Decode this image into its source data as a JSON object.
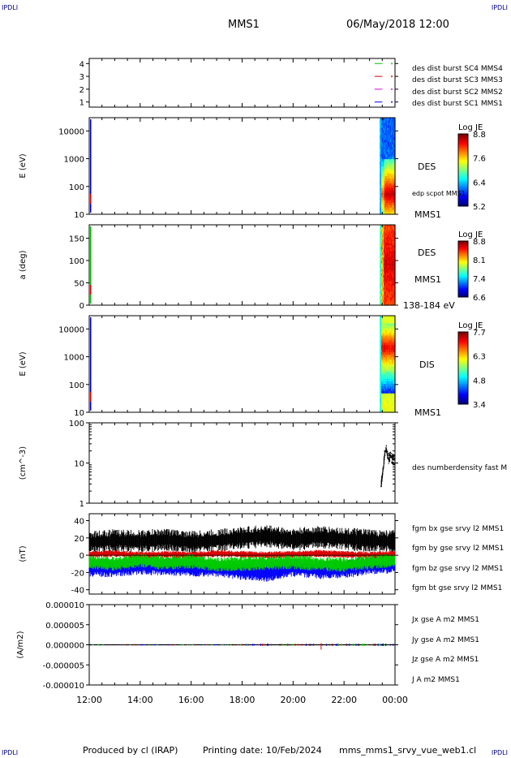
{
  "header": {
    "corner_label": "IPDLI",
    "spacecraft": "MMS1",
    "datetime": "06/May/2018 12:00"
  },
  "footer": {
    "produced_by": "Produced by cl (IRAP)",
    "printing_date": "Printing date: 10/Feb/2024",
    "filename": "mms_mms1_srvy_vue_web1.cl"
  },
  "colors": {
    "red": "#dd0000",
    "green": "#00cc00",
    "blue": "#0000ff",
    "magenta": "#dd00dd",
    "black": "#000000"
  },
  "time_axis": {
    "ticks": [
      "12:00",
      "14:00",
      "16:00",
      "18:00",
      "20:00",
      "22:00",
      "00:00"
    ],
    "range_hours": [
      12,
      24
    ]
  },
  "chart_data": [
    {
      "type": "scatter",
      "id": "burst",
      "yticks": [
        "1",
        "2",
        "3",
        "4"
      ],
      "ylim": [
        0.6,
        4.4
      ],
      "legend": [
        {
          "label": "des dist burst SC1 MMS1",
          "color": "#0000ff",
          "level": 1
        },
        {
          "label": "des dist burst SC2 MMS2",
          "color": "#dd00dd",
          "level": 2
        },
        {
          "label": "des dist burst SC3 MMS3",
          "color": "#dd0000",
          "level": 3
        },
        {
          "label": "des dist burst SC4 MMS4",
          "color": "#00cc00",
          "level": 4
        }
      ],
      "burst_interval_hours": [
        23.2,
        23.5
      ]
    },
    {
      "type": "heatmap",
      "id": "des_energy",
      "ylabel": "E (eV)",
      "scale": "log",
      "ylim": [
        10,
        30000
      ],
      "yticks": [
        "10",
        "100",
        "1000",
        "10000"
      ],
      "labels": [
        "DES",
        "edp scpot MMS1",
        "MMS1"
      ],
      "colorbar": {
        "title": "Log JE",
        "ticks": [
          "8.8",
          "7.6",
          "6.4",
          "5.2"
        ],
        "range": [
          5.2,
          8.8
        ]
      },
      "data_interval_hours": [
        23.4,
        24
      ]
    },
    {
      "type": "heatmap",
      "id": "des_pitch",
      "ylabel": "a (deg)",
      "ylim": [
        0,
        180
      ],
      "yticks": [
        "0",
        "50",
        "100",
        "150"
      ],
      "labels": [
        "DES",
        "MMS1",
        "138-184 eV"
      ],
      "colorbar": {
        "title": "Log JE",
        "ticks": [
          "8.8",
          "8.1",
          "7.4",
          "6.6"
        ],
        "range": [
          6.6,
          8.8
        ]
      },
      "data_interval_hours": [
        23.4,
        24
      ]
    },
    {
      "type": "heatmap",
      "id": "dis_energy",
      "ylabel": "E (eV)",
      "scale": "log",
      "ylim": [
        10,
        30000
      ],
      "yticks": [
        "10",
        "100",
        "1000",
        "10000"
      ],
      "labels": [
        "DIS",
        "MMS1"
      ],
      "colorbar": {
        "title": "Log JE",
        "ticks": [
          "7.7",
          "6.3",
          "4.8",
          "3.4"
        ],
        "range": [
          3.4,
          7.7
        ]
      },
      "data_interval_hours": [
        23.4,
        24
      ]
    },
    {
      "type": "line",
      "id": "density",
      "ylabel": "(cm^-3)",
      "scale": "log",
      "ylim": [
        1,
        100
      ],
      "yticks": [
        "1",
        "10",
        "100"
      ],
      "legend": [
        {
          "label": "des numberdensity fast M",
          "color": "#000000"
        }
      ],
      "x": [
        23.45,
        23.5,
        23.55,
        23.6,
        23.65,
        23.7,
        23.75,
        23.8,
        23.85,
        23.9,
        23.95,
        24.0
      ],
      "y": [
        2.5,
        5,
        8,
        18,
        22,
        15,
        12,
        16,
        14,
        13,
        12,
        12
      ]
    },
    {
      "type": "line",
      "id": "fgm",
      "ylabel": "(nT)",
      "ylim": [
        -45,
        48
      ],
      "yticks": [
        "-40",
        "-20",
        "0",
        "20",
        "40"
      ],
      "legend": [
        {
          "label": "fgm bx gse srvy l2 MMS1",
          "color": "#dd0000"
        },
        {
          "label": "fgm by gse srvy l2 MMS1",
          "color": "#00cc00"
        },
        {
          "label": "fgm bz gse srvy l2 MMS1",
          "color": "#0000ff"
        },
        {
          "label": "fgm bt gse srvy l2 MMS1",
          "color": "#000000"
        }
      ],
      "series": [
        {
          "key": "bt",
          "color": "#000000",
          "x": [
            12,
            13,
            14,
            15,
            16,
            17,
            18,
            19,
            20,
            21,
            22,
            23,
            24
          ],
          "y": [
            15,
            17,
            16,
            18,
            15,
            17,
            20,
            22,
            18,
            21,
            19,
            17,
            16
          ]
        },
        {
          "key": "bz",
          "color": "#0000ff",
          "x": [
            12,
            13,
            14,
            15,
            16,
            17,
            18,
            19,
            20,
            21,
            22,
            23,
            24
          ],
          "y": [
            -14,
            -15,
            -12,
            -13,
            -14,
            -15,
            -18,
            -20,
            -14,
            -17,
            -16,
            -12,
            -10
          ]
        },
        {
          "key": "bx",
          "color": "#dd0000",
          "x": [
            12,
            13,
            14,
            15,
            16,
            17,
            18,
            19,
            20,
            21,
            22,
            23,
            24
          ],
          "y": [
            1,
            2,
            0,
            1,
            0,
            2,
            1,
            0,
            1,
            2,
            1,
            0,
            1
          ]
        },
        {
          "key": "by",
          "color": "#00cc00",
          "x": [
            12,
            13,
            14,
            15,
            16,
            17,
            18,
            19,
            20,
            21,
            22,
            23,
            24
          ],
          "y": [
            -8,
            -10,
            -6,
            -9,
            -7,
            -11,
            -10,
            -9,
            -8,
            -10,
            -11,
            -8,
            -6
          ]
        }
      ]
    },
    {
      "type": "line",
      "id": "current",
      "ylabel": "(A/m2)",
      "ylim": [
        -1e-05,
        1e-05
      ],
      "yticks": [
        "-0.000010",
        "-0.000005",
        "0.000000",
        "0.000005",
        "0.000010"
      ],
      "legend": [
        {
          "label": "Jx gse A m2 MMS1",
          "color": "#dd0000"
        },
        {
          "label": "Jy gse A m2 MMS1",
          "color": "#00cc00"
        },
        {
          "label": "Jz gse A m2 MMS1",
          "color": "#0000ff"
        },
        {
          "label": "J A m2 MMS1",
          "color": "#000000"
        }
      ],
      "x": [
        12,
        14,
        16,
        18,
        20,
        21,
        22,
        24
      ],
      "y": [
        0,
        0,
        0,
        0,
        0,
        0,
        0,
        0
      ]
    }
  ]
}
